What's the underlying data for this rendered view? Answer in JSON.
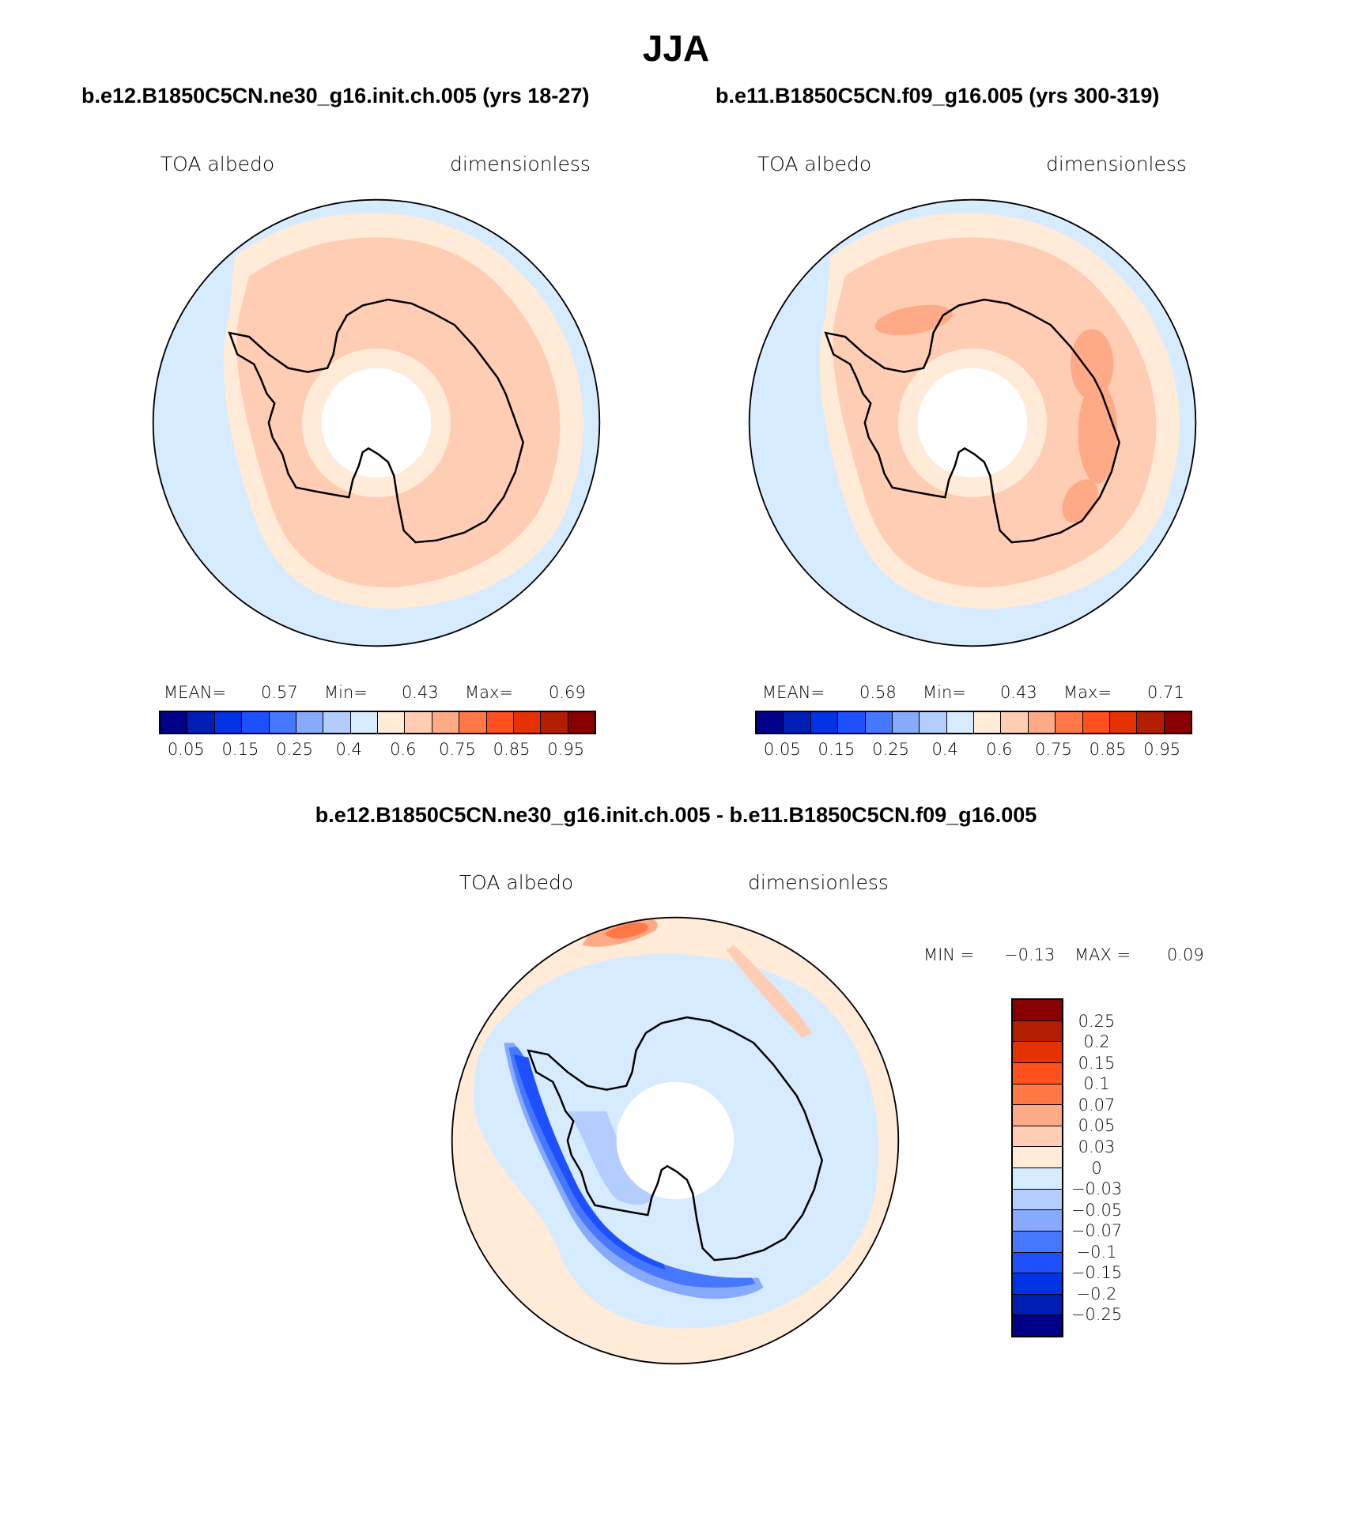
{
  "chart_data": [
    {
      "type": "heatmap",
      "title": "b.e12.B1850C5CN.ne30_g16.init.ch.005 (yrs 18-27)",
      "variable": "TOA albedo",
      "units": "dimensionless",
      "stats": {
        "mean_label": "MEAN=",
        "mean": "0.57",
        "min_label": "Min=",
        "min": "0.43",
        "max_label": "Max=",
        "max": "0.69"
      },
      "colorbar_ticks": [
        "0.05",
        "0.15",
        "0.25",
        "0.4",
        "0.6",
        "0.75",
        "0.85",
        "0.95"
      ]
    },
    {
      "type": "heatmap",
      "title": "b.e11.B1850C5CN.f09_g16.005 (yrs 300-319)",
      "variable": "TOA albedo",
      "units": "dimensionless",
      "stats": {
        "mean_label": "MEAN=",
        "mean": "0.58",
        "min_label": "Min=",
        "min": "0.43",
        "max_label": "Max=",
        "max": "0.71"
      },
      "colorbar_ticks": [
        "0.05",
        "0.15",
        "0.25",
        "0.4",
        "0.6",
        "0.75",
        "0.85",
        "0.95"
      ]
    },
    {
      "type": "heatmap",
      "title": "b.e12.B1850C5CN.ne30_g16.init.ch.005 - b.e11.B1850C5CN.f09_g16.005",
      "variable": "TOA albedo",
      "units": "dimensionless",
      "stats": {
        "min_label": "MIN =",
        "min": "−0.13",
        "max_label": "MAX =",
        "max": "0.09"
      },
      "colorbar_ticks": [
        "0.25",
        "0.2",
        "0.15",
        "0.1",
        "0.07",
        "0.05",
        "0.03",
        "0",
        "−0.03",
        "−0.05",
        "−0.07",
        "−0.1",
        "−0.15",
        "−0.2",
        "−0.25"
      ]
    }
  ],
  "figure_title": "JJA",
  "palette": [
    "#000088",
    "#001eb4",
    "#0032e6",
    "#1e50ff",
    "#4678ff",
    "#87aaff",
    "#b4cdff",
    "#d7ebff",
    "#ffebd7",
    "#ffcdb4",
    "#ffaa87",
    "#ff7846",
    "#ff501e",
    "#e63200",
    "#b41e00",
    "#880000"
  ]
}
